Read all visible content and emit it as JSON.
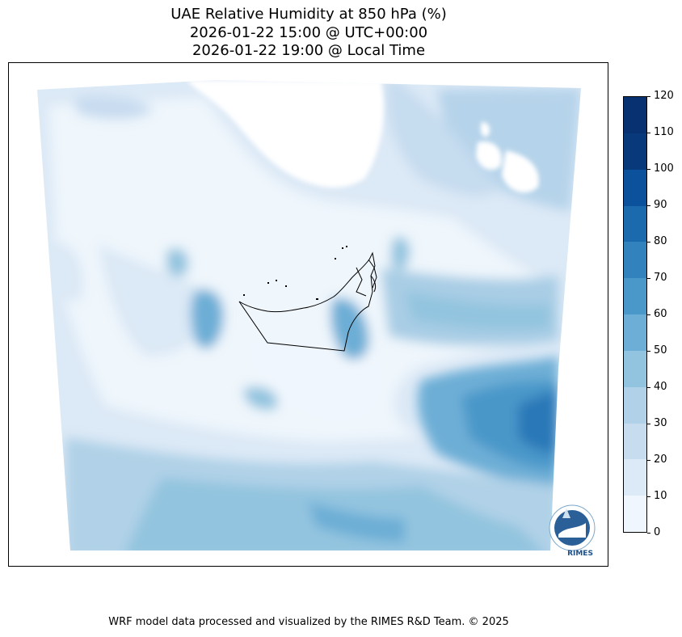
{
  "title": {
    "line1": "UAE Relative Humidity at 850 hPa (%)",
    "line2": "2026-01-22 15:00 @ UTC+00:00",
    "line3": "2026-01-22 19:00 @ Local Time"
  },
  "map": {
    "logo_text": "RIMES"
  },
  "colorbar": {
    "ticks": [
      "0",
      "10",
      "20",
      "30",
      "40",
      "50",
      "60",
      "70",
      "80",
      "90",
      "100",
      "110",
      "120"
    ],
    "colors": [
      "#f0f6fd",
      "#dce9f6",
      "#c8dcf0",
      "#b0d1e7",
      "#93c4df",
      "#6daed6",
      "#4a97c9",
      "#3282be",
      "#1b6aae",
      "#0c519b",
      "#083a7b",
      "#083171"
    ]
  },
  "footer": {
    "text": "WRF model data processed and visualized by the RIMES R&D Team. © 2025"
  }
}
